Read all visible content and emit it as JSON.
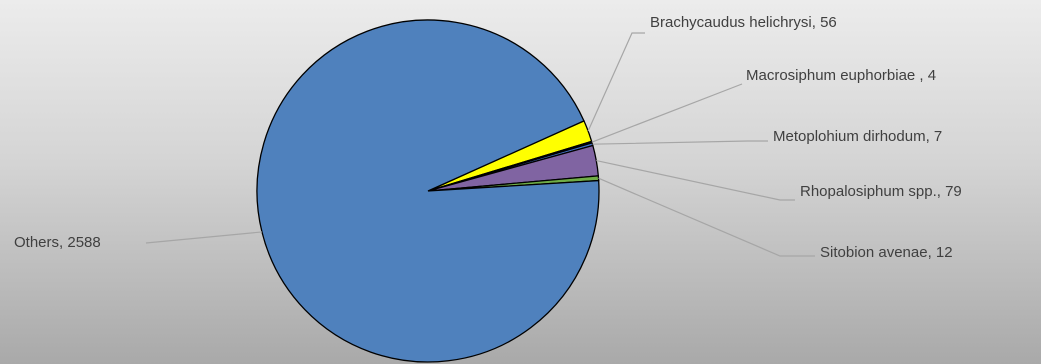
{
  "chart_data": {
    "type": "pie",
    "title": "",
    "slices": [
      {
        "label": "Brachycaudus helichrysi",
        "value": 56,
        "color": "#ffff00"
      },
      {
        "label": "Macrosiphum euphorbiae",
        "value": 4,
        "color": "#1f1f1f"
      },
      {
        "label": "Metoplohium dirhodum",
        "value": 7,
        "color": "#4472c4"
      },
      {
        "label": "Rhopalosiphum spp.",
        "value": 79,
        "color": "#8064a2"
      },
      {
        "label": "Sitobion avenae",
        "value": 12,
        "color": "#70ad47"
      },
      {
        "label": "Others",
        "value": 2588,
        "color": "#4f81bd"
      }
    ],
    "data_labels": [
      "Brachycaudus helichrysi, 56",
      "Macrosiphum euphorbiae , 4",
      "Metoplohium dirhodum, 7",
      "Rhopalosiphum spp., 79",
      "Sitobion avenae, 12",
      "Others, 2588"
    ],
    "legend": "none"
  }
}
